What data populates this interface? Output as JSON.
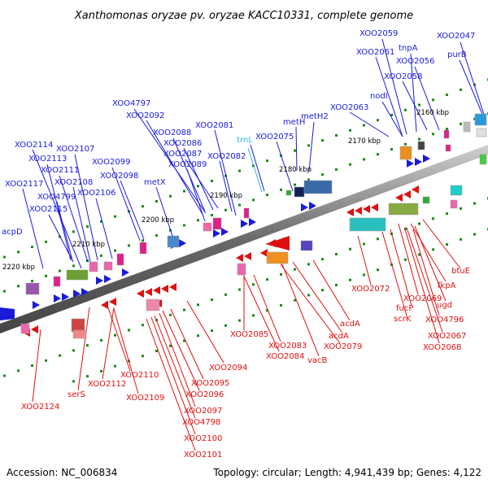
{
  "title": "Xanthomonas oryzae pv. oryzae KACC10331, complete genome",
  "footer": {
    "accession": "Accession: NC_006834",
    "stats": "Topology: circular; Length: 4,941,439 bp; Genes: 4,122"
  },
  "colors": {
    "forward": "#1a1ad8",
    "reverse": "#dd1111",
    "trna": "#33b5e0",
    "tick": "#1a8a1a",
    "axis": "#777777"
  },
  "kbp_labels": [
    "2160 kbp",
    "2170 kbp",
    "2180 kbp",
    "2190 kbp",
    "2200 kbp",
    "2210 kbp",
    "2220 kbp"
  ],
  "upper_labels": [
    "XOO2059",
    "XOO2047",
    "tnpA",
    "XOO2061",
    "XOO2056",
    "purB",
    "XOO2058",
    "nodI",
    "XOO2063",
    "metH2",
    "metH",
    "XOO2075",
    "trnL",
    "XOO4797",
    "XOO2092",
    "XOO2081",
    "XOO2088",
    "XOO2086",
    "XOO2087",
    "XOO2082",
    "XOO2089",
    "metX",
    "XOO2114",
    "XOO2107",
    "XOO2113",
    "XOO2111",
    "XOO2099",
    "XOO2098",
    "XOO2117",
    "XOO2108",
    "XOO2106",
    "XOO4799",
    "XOO2115",
    "acpD"
  ],
  "lower_labels": [
    "btuE",
    "fkpA",
    "XOO2072",
    "XOO2069",
    "ugd",
    "fucP",
    "scrK",
    "XOO4796",
    "XOO2067",
    "XOO2068",
    "acdA",
    "acdA",
    "XOO2079",
    "XOO2085",
    "XOO2083",
    "XOO2084",
    "vacB",
    "XOO2094",
    "XOO2110",
    "XOO2112",
    "XOO2095",
    "XOO2096",
    "serS",
    "XOO2109",
    "XOO2097",
    "XOO4798",
    "XOO2124",
    "XOO2100",
    "XOO2101"
  ]
}
